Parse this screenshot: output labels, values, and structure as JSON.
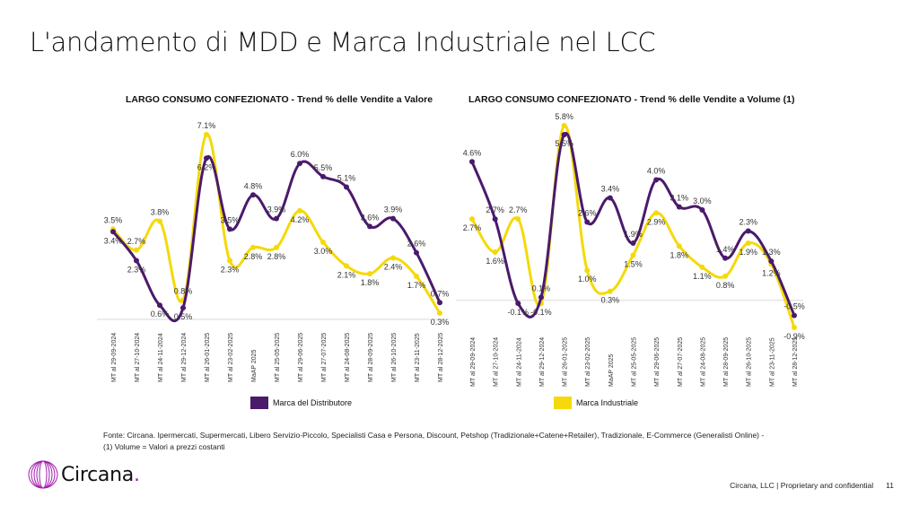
{
  "page": {
    "title": "L'andamento di MDD e Marca Industriale nel LCC",
    "footnote_line1": "Fonte: Circana. Ipermercati, Supermercati, Libero Servizio-Piccolo, Specialisti Casa e Persona, Discount, Petshop (Tradizionale+Catene+Retailer), Tradizionale, E-Commerce (Generalisti Online) -",
    "footnote_line2": "(1) Volume = Valori a prezzi costanti",
    "logo_text": "Circana",
    "logo_dot": ".",
    "footer_text": "Circana, LLC |  Proprietary and confidential",
    "page_number": "11"
  },
  "colors": {
    "mdd": "#4a1a6b",
    "mi": "#f5d90a",
    "zero_line": "#d8d8d8",
    "label": "#333333"
  },
  "chart_data": [
    {
      "type": "line",
      "title": "LARGO CONSUMO CONFEZIONATO - Trend % delle Vendite a Valore",
      "xlabel": "",
      "ylabel": "",
      "ylim": [
        0,
        7.5
      ],
      "grid": false,
      "legend_position": "bottom",
      "categories": [
        "MT al 29-09-2024",
        "MT al 27-10-2024",
        "MT al 24-11-2024",
        "MT al 29-12-2024",
        "MT al 26-01-2025",
        "MT al 23-02-2025",
        "MaAP 2025",
        "MT al 25-05-2025",
        "MT al 29-06-2025",
        "MT al 27-07-2025",
        "MT al 24-08-2025",
        "MT al 28-09-2025",
        "MT al 26-10-2025",
        "MT al 23-11-2025",
        "MT al 28-12-2025"
      ],
      "series": [
        {
          "name": "Marca del Distributore",
          "key": "mdd",
          "values": [
            3.4,
            2.3,
            0.6,
            0.5,
            6.2,
            3.5,
            4.8,
            3.9,
            6.0,
            5.5,
            5.1,
            3.6,
            3.9,
            2.6,
            0.7
          ],
          "labels": [
            "3.4%",
            "2.3%",
            "0.6%",
            "0.5%",
            "6.2%",
            "3.5%",
            "4.8%",
            "3.9%",
            "6.0%",
            "5.5%",
            "5.1%",
            "3.6%",
            "3.9%",
            "2.6%",
            "0.7%"
          ]
        },
        {
          "name": "Marca Industriale",
          "key": "mi",
          "values": [
            3.5,
            2.7,
            3.8,
            0.8,
            7.1,
            2.3,
            2.8,
            2.8,
            4.2,
            3.0,
            2.1,
            1.8,
            2.4,
            1.7,
            0.3
          ],
          "labels": [
            "3.5%",
            "2.7%",
            "3.8%",
            "0.8%",
            "7.1%",
            "2.3%",
            "2.8%",
            "2.8%",
            "4.2%",
            "3.0%",
            "2.1%",
            "1.8%",
            "2.4%",
            "1.7%",
            "0.3%"
          ]
        }
      ]
    },
    {
      "type": "line",
      "title": "LARGO CONSUMO CONFEZIONATO - Trend % delle Vendite a Volume (1)",
      "xlabel": "",
      "ylabel": "",
      "ylim": [
        -1.0,
        6.0
      ],
      "grid": false,
      "legend_position": "bottom",
      "categories": [
        "MT al 29-09-2024",
        "MT al 27-10-2024",
        "MT al 24-11-2024",
        "MT al 29-12-2024",
        "MT al 26-01-2025",
        "MT al 23-02-2025",
        "MaAP 2025",
        "MT al 25-05-2025",
        "MT al 29-06-2025",
        "MT al 27-07-2025",
        "MT al 24-08-2025",
        "MT al 28-09-2025",
        "MT al 26-10-2025",
        "MT al 23-11-2025",
        "MT al 28-12-2025"
      ],
      "series": [
        {
          "name": "Marca del Distributore",
          "key": "mdd",
          "values": [
            4.6,
            2.7,
            -0.1,
            0.1,
            5.5,
            2.6,
            3.4,
            1.9,
            4.0,
            3.1,
            3.0,
            1.4,
            2.3,
            1.3,
            -0.5
          ],
          "labels": [
            "4.6%",
            "2.7%",
            "-0.1%",
            "0.1%",
            "5.5%",
            "2.6%",
            "3.4%",
            "1.9%",
            "4.0%",
            "3.1%",
            "3.0%",
            "1.4%",
            "2.3%",
            "1.3%",
            "-0.5%"
          ]
        },
        {
          "name": "Marca Industriale",
          "key": "mi",
          "values": [
            2.7,
            1.6,
            2.7,
            -0.1,
            5.8,
            1.0,
            0.3,
            1.5,
            2.9,
            1.8,
            1.1,
            0.8,
            1.9,
            1.2,
            -0.9
          ],
          "labels": [
            "2.7%",
            "1.6%",
            "2.7%",
            "-0.1%",
            "5.8%",
            "1.0%",
            "0.3%",
            "1.5%",
            "2.9%",
            "1.8%",
            "1.1%",
            "0.8%",
            "1.9%",
            "1.2%",
            "-0.9%"
          ]
        }
      ]
    }
  ]
}
